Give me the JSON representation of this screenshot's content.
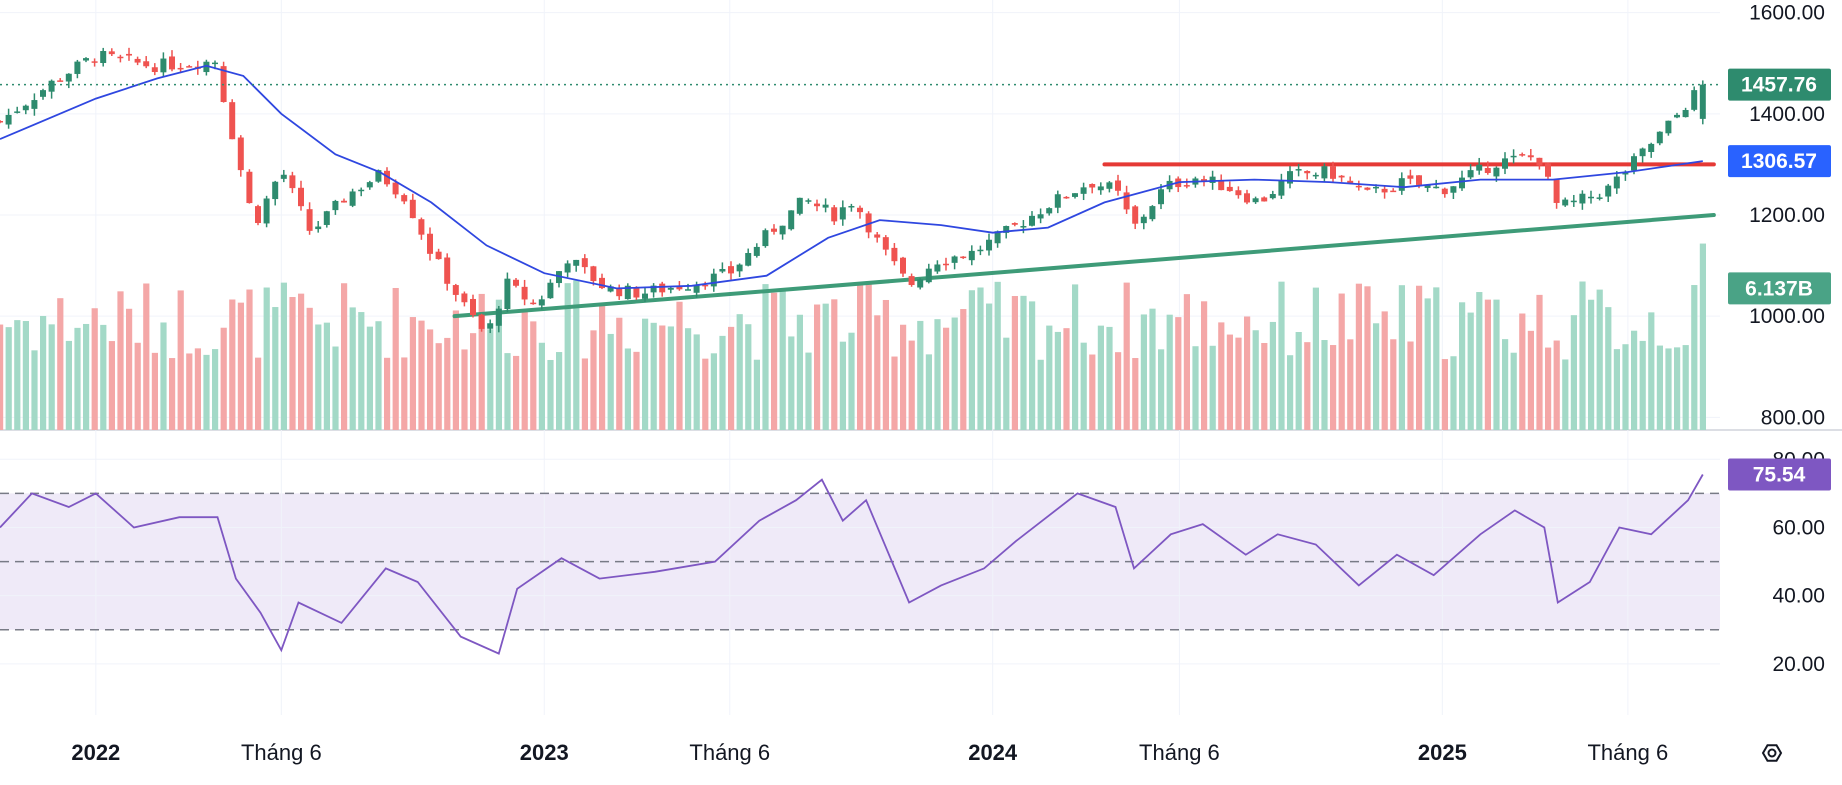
{
  "chart_data": {
    "type": "candlestick",
    "interval": "weekly",
    "price_axis": {
      "ticks": [
        800,
        1000,
        1200,
        1400,
        1600
      ],
      "tick_labels": [
        "800.00",
        "1000.00",
        "1200.00",
        "1400.00",
        "1600.00"
      ],
      "range": [
        775,
        1625
      ]
    },
    "time_axis": {
      "range": [
        "2021-10-15",
        "2025-08-15"
      ],
      "labels": [
        {
          "text": "2022",
          "date": "2022-01-01",
          "bold": true
        },
        {
          "text": "Tháng 6",
          "date": "2022-06-01",
          "bold": false
        },
        {
          "text": "2023",
          "date": "2023-01-01",
          "bold": true
        },
        {
          "text": "Tháng 6",
          "date": "2023-06-01",
          "bold": false
        },
        {
          "text": "2024",
          "date": "2024-01-01",
          "bold": true
        },
        {
          "text": "Tháng 6",
          "date": "2024-06-01",
          "bold": false
        },
        {
          "text": "2025",
          "date": "2025-01-01",
          "bold": true
        },
        {
          "text": "Tháng 6",
          "date": "2025-06-01",
          "bold": false
        }
      ]
    },
    "price_tags": [
      {
        "label": "1457.76",
        "value": 1457.76,
        "color": "#2e8b6e",
        "role": "last-price"
      },
      {
        "label": "1306.57",
        "value": 1306.57,
        "color": "#2962ff",
        "role": "moving-average"
      },
      {
        "label": "6.137B",
        "value": 1055,
        "color": "#4aa386",
        "role": "volume"
      }
    ],
    "last_price_line": 1457.76,
    "colors": {
      "up": "#2e8b6e",
      "down": "#ef5350",
      "up_volume": "#a3d9c7",
      "down_volume": "#f4a7a7",
      "ma": "#2f47e0",
      "rsi": "#7e57c2",
      "rsi_band": "#efeaf8",
      "support": "#3e9b78",
      "resistance": "#e53935"
    },
    "close_series": [
      {
        "date": "2021-10-15",
        "close": 1385
      },
      {
        "date": "2021-12-01",
        "close": 1470
      },
      {
        "date": "2022-01-01",
        "close": 1515
      },
      {
        "date": "2022-02-15",
        "close": 1495
      },
      {
        "date": "2022-03-20",
        "close": 1500
      },
      {
        "date": "2022-04-08",
        "close": 1505
      },
      {
        "date": "2022-04-20",
        "close": 1380
      },
      {
        "date": "2022-05-10",
        "close": 1180
      },
      {
        "date": "2022-06-01",
        "close": 1290
      },
      {
        "date": "2022-06-25",
        "close": 1165
      },
      {
        "date": "2022-07-25",
        "close": 1240
      },
      {
        "date": "2022-08-20",
        "close": 1280
      },
      {
        "date": "2022-09-10",
        "close": 1235
      },
      {
        "date": "2022-10-01",
        "close": 1125
      },
      {
        "date": "2022-10-25",
        "close": 1030
      },
      {
        "date": "2022-11-15",
        "close": 960
      },
      {
        "date": "2022-12-01",
        "close": 1065
      },
      {
        "date": "2022-12-25",
        "close": 1020
      },
      {
        "date": "2023-01-20",
        "close": 1115
      },
      {
        "date": "2023-02-20",
        "close": 1055
      },
      {
        "date": "2023-03-20",
        "close": 1045
      },
      {
        "date": "2023-05-01",
        "close": 1065
      },
      {
        "date": "2023-06-01",
        "close": 1085
      },
      {
        "date": "2023-07-01",
        "close": 1160
      },
      {
        "date": "2023-08-01",
        "close": 1230
      },
      {
        "date": "2023-08-25",
        "close": 1200
      },
      {
        "date": "2023-09-10",
        "close": 1230
      },
      {
        "date": "2023-10-01",
        "close": 1140
      },
      {
        "date": "2023-10-25",
        "close": 1060
      },
      {
        "date": "2023-11-15",
        "close": 1110
      },
      {
        "date": "2023-12-15",
        "close": 1125
      },
      {
        "date": "2024-01-15",
        "close": 1170
      },
      {
        "date": "2024-02-15",
        "close": 1220
      },
      {
        "date": "2024-03-20",
        "close": 1265
      },
      {
        "date": "2024-04-10",
        "close": 1250
      },
      {
        "date": "2024-04-25",
        "close": 1175
      },
      {
        "date": "2024-05-20",
        "close": 1255
      },
      {
        "date": "2024-06-15",
        "close": 1275
      },
      {
        "date": "2024-07-10",
        "close": 1255
      },
      {
        "date": "2024-08-05",
        "close": 1225
      },
      {
        "date": "2024-09-01",
        "close": 1280
      },
      {
        "date": "2024-10-01",
        "close": 1285
      },
      {
        "date": "2024-11-01",
        "close": 1240
      },
      {
        "date": "2024-12-01",
        "close": 1265
      },
      {
        "date": "2025-01-01",
        "close": 1250
      },
      {
        "date": "2025-02-15",
        "close": 1305
      },
      {
        "date": "2025-03-20",
        "close": 1315
      },
      {
        "date": "2025-04-05",
        "close": 1215
      },
      {
        "date": "2025-04-20",
        "close": 1225
      },
      {
        "date": "2025-05-15",
        "close": 1250
      },
      {
        "date": "2025-06-10",
        "close": 1315
      },
      {
        "date": "2025-07-05",
        "close": 1380
      },
      {
        "date": "2025-08-01",
        "close": 1457.76
      }
    ],
    "moving_average": [
      {
        "date": "2021-10-15",
        "value": 1350
      },
      {
        "date": "2022-01-01",
        "value": 1430
      },
      {
        "date": "2022-02-20",
        "value": 1470
      },
      {
        "date": "2022-04-01",
        "value": 1495
      },
      {
        "date": "2022-05-01",
        "value": 1475
      },
      {
        "date": "2022-06-01",
        "value": 1400
      },
      {
        "date": "2022-07-15",
        "value": 1320
      },
      {
        "date": "2022-08-20",
        "value": 1285
      },
      {
        "date": "2022-10-01",
        "value": 1225
      },
      {
        "date": "2022-11-15",
        "value": 1140
      },
      {
        "date": "2023-01-01",
        "value": 1085
      },
      {
        "date": "2023-03-01",
        "value": 1055
      },
      {
        "date": "2023-05-01",
        "value": 1060
      },
      {
        "date": "2023-07-01",
        "value": 1080
      },
      {
        "date": "2023-08-20",
        "value": 1155
      },
      {
        "date": "2023-10-01",
        "value": 1190
      },
      {
        "date": "2023-11-20",
        "value": 1180
      },
      {
        "date": "2024-01-01",
        "value": 1165
      },
      {
        "date": "2024-02-15",
        "value": 1175
      },
      {
        "date": "2024-04-01",
        "value": 1225
      },
      {
        "date": "2024-06-01",
        "value": 1265
      },
      {
        "date": "2024-08-01",
        "value": 1270
      },
      {
        "date": "2024-10-01",
        "value": 1265
      },
      {
        "date": "2024-12-01",
        "value": 1255
      },
      {
        "date": "2025-02-01",
        "value": 1270
      },
      {
        "date": "2025-04-01",
        "value": 1270
      },
      {
        "date": "2025-06-01",
        "value": 1285
      },
      {
        "date": "2025-08-01",
        "value": 1306.57
      }
    ],
    "trendlines": [
      {
        "name": "support",
        "from": {
          "date": "2022-10-20",
          "value": 1000
        },
        "to": {
          "date": "2025-08-10",
          "value": 1200
        }
      },
      {
        "name": "resistance",
        "from": {
          "date": "2024-04-01",
          "value": 1300
        },
        "to": {
          "date": "2025-08-10",
          "value": 1300
        }
      }
    ],
    "rsi": {
      "axis": {
        "ticks": [
          20,
          40,
          60,
          80
        ],
        "tick_labels": [
          "20.00",
          "40.00",
          "60.00",
          "80.00"
        ],
        "range": [
          5,
          88
        ]
      },
      "levels": [
        70,
        50,
        30
      ],
      "last": {
        "label": "75.54",
        "value": 75.54
      },
      "series": [
        {
          "date": "2021-10-15",
          "value": 60
        },
        {
          "date": "2021-11-10",
          "value": 70
        },
        {
          "date": "2021-12-10",
          "value": 66
        },
        {
          "date": "2022-01-01",
          "value": 70
        },
        {
          "date": "2022-02-01",
          "value": 60
        },
        {
          "date": "2022-03-10",
          "value": 63
        },
        {
          "date": "2022-04-10",
          "value": 63
        },
        {
          "date": "2022-04-25",
          "value": 45
        },
        {
          "date": "2022-05-15",
          "value": 35
        },
        {
          "date": "2022-06-01",
          "value": 24
        },
        {
          "date": "2022-06-15",
          "value": 38
        },
        {
          "date": "2022-07-20",
          "value": 32
        },
        {
          "date": "2022-08-25",
          "value": 48
        },
        {
          "date": "2022-09-20",
          "value": 44
        },
        {
          "date": "2022-10-25",
          "value": 28
        },
        {
          "date": "2022-11-25",
          "value": 23
        },
        {
          "date": "2022-12-10",
          "value": 42
        },
        {
          "date": "2023-01-15",
          "value": 51
        },
        {
          "date": "2023-02-15",
          "value": 45
        },
        {
          "date": "2023-04-01",
          "value": 47
        },
        {
          "date": "2023-05-20",
          "value": 50
        },
        {
          "date": "2023-06-25",
          "value": 62
        },
        {
          "date": "2023-07-25",
          "value": 68
        },
        {
          "date": "2023-08-15",
          "value": 74
        },
        {
          "date": "2023-09-01",
          "value": 62
        },
        {
          "date": "2023-09-20",
          "value": 68
        },
        {
          "date": "2023-10-25",
          "value": 38
        },
        {
          "date": "2023-11-20",
          "value": 43
        },
        {
          "date": "2023-12-25",
          "value": 48
        },
        {
          "date": "2024-01-20",
          "value": 56
        },
        {
          "date": "2024-03-10",
          "value": 70
        },
        {
          "date": "2024-04-10",
          "value": 66
        },
        {
          "date": "2024-04-25",
          "value": 48
        },
        {
          "date": "2024-05-25",
          "value": 58
        },
        {
          "date": "2024-06-20",
          "value": 61
        },
        {
          "date": "2024-07-25",
          "value": 52
        },
        {
          "date": "2024-08-20",
          "value": 58
        },
        {
          "date": "2024-09-20",
          "value": 55
        },
        {
          "date": "2024-10-25",
          "value": 43
        },
        {
          "date": "2024-11-25",
          "value": 52
        },
        {
          "date": "2024-12-25",
          "value": 46
        },
        {
          "date": "2025-02-01",
          "value": 58
        },
        {
          "date": "2025-03-01",
          "value": 65
        },
        {
          "date": "2025-03-25",
          "value": 60
        },
        {
          "date": "2025-04-05",
          "value": 38
        },
        {
          "date": "2025-05-01",
          "value": 44
        },
        {
          "date": "2025-05-25",
          "value": 60
        },
        {
          "date": "2025-06-20",
          "value": 58
        },
        {
          "date": "2025-07-20",
          "value": 68
        },
        {
          "date": "2025-08-01",
          "value": 75.54
        }
      ]
    }
  }
}
